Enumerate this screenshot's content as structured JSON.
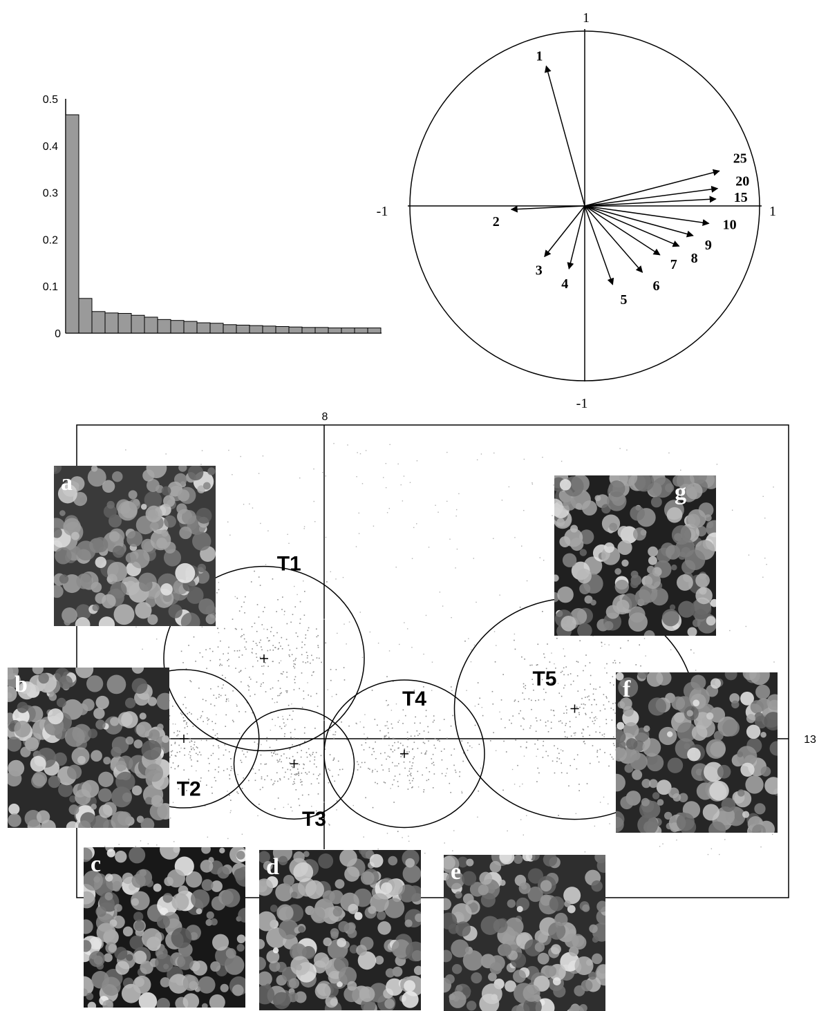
{
  "chart_data": [
    {
      "type": "bar",
      "description_of_panel": "",
      "ylim": [
        0,
        0.5
      ],
      "yticks": [
        "0.5",
        "0.4",
        "0.3",
        "0.2",
        "0.1",
        "0"
      ],
      "values": [
        0.466,
        0.074,
        0.046,
        0.043,
        0.042,
        0.038,
        0.034,
        0.029,
        0.027,
        0.025,
        0.022,
        0.021,
        0.018,
        0.017,
        0.016,
        0.015,
        0.014,
        0.013,
        0.012,
        0.012,
        0.011,
        0.011,
        0.011,
        0.011
      ]
    },
    {
      "type": "scatter",
      "subtype": "correlation-circle",
      "xlim": [
        -1,
        1
      ],
      "ylim": [
        -1,
        1
      ],
      "axis_labels": {
        "top": "1",
        "bottom": "-1",
        "left": "-1",
        "right": "1"
      },
      "vectors": [
        {
          "label": "1",
          "x": -0.22,
          "y": 0.8
        },
        {
          "label": "2",
          "x": -0.42,
          "y": -0.02
        },
        {
          "label": "3",
          "x": -0.23,
          "y": -0.29
        },
        {
          "label": "4",
          "x": -0.09,
          "y": -0.36
        },
        {
          "label": "5",
          "x": 0.16,
          "y": -0.45
        },
        {
          "label": "6",
          "x": 0.33,
          "y": -0.38
        },
        {
          "label": "7",
          "x": 0.43,
          "y": -0.28
        },
        {
          "label": "8",
          "x": 0.54,
          "y": -0.23
        },
        {
          "label": "9",
          "x": 0.62,
          "y": -0.17
        },
        {
          "label": "10",
          "x": 0.71,
          "y": -0.1
        },
        {
          "label": "15",
          "x": 0.75,
          "y": 0.04
        },
        {
          "label": "20",
          "x": 0.76,
          "y": 0.1
        },
        {
          "label": "25",
          "x": 0.77,
          "y": 0.2
        }
      ]
    },
    {
      "type": "scatter",
      "subtype": "factorial-plane",
      "axis_labels": {
        "top": "8",
        "right": "13"
      },
      "clusters": [
        {
          "label": "T1",
          "cx": -0.6,
          "cy": 0.8,
          "r": 1.0
        },
        {
          "label": "T2",
          "cx": -1.4,
          "cy": 0.0,
          "r": 0.75
        },
        {
          "label": "T3",
          "cx": -0.3,
          "cy": -0.25,
          "r": 0.6
        },
        {
          "label": "T4",
          "cx": 0.8,
          "cy": -0.15,
          "r": 0.8
        },
        {
          "label": "T5",
          "cx": 2.5,
          "cy": 0.3,
          "r": 1.2
        }
      ]
    }
  ],
  "thumbnails": [
    "a",
    "b",
    "c",
    "d",
    "e",
    "f",
    "g"
  ],
  "colors": {
    "bar_fill": "#9a9a9a",
    "ink": "#000000",
    "dots": "#8c8c8c"
  }
}
